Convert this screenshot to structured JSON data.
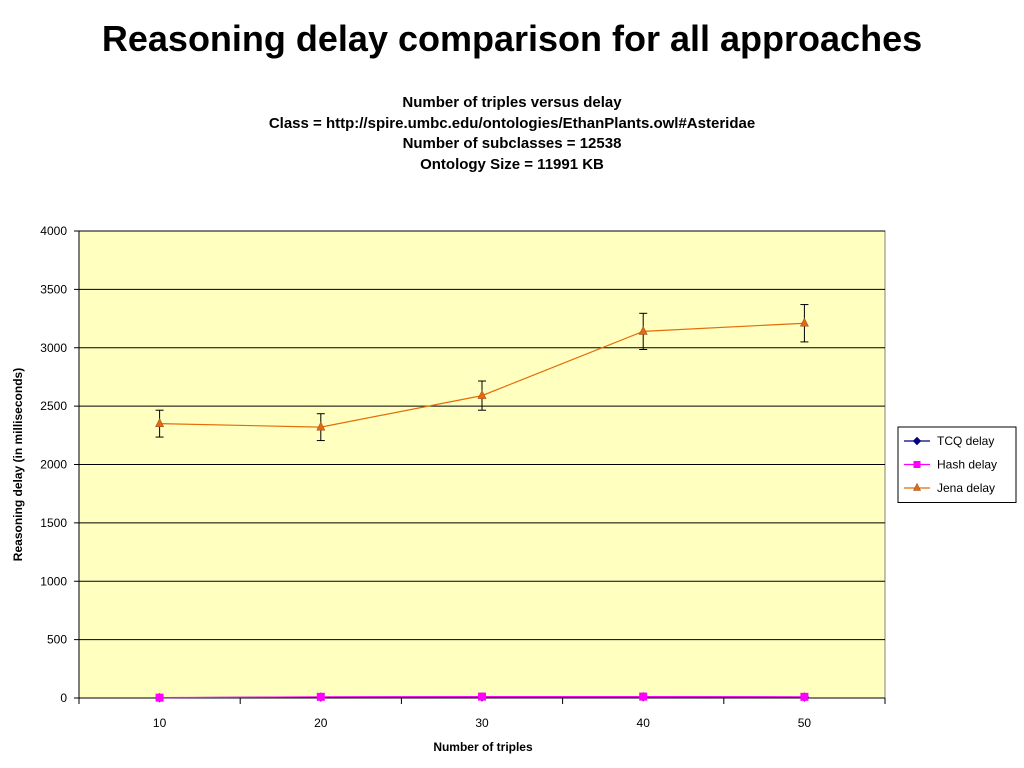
{
  "slide": {
    "title": "Reasoning delay comparison for all approaches"
  },
  "chart_data": {
    "type": "line",
    "title_lines": [
      "Number of triples versus delay",
      "Class = http://spire.umbc.edu/ontologies/EthanPlants.owl#Asteridae",
      "Number of subclasses = 12538",
      "Ontology Size = 11991 KB"
    ],
    "xlabel": "Number of triples",
    "ylabel": "Reasoning delay (in milliseconds)",
    "categories": [
      "10",
      "20",
      "30",
      "40",
      "50"
    ],
    "ylim": [
      0,
      4000
    ],
    "yticks": [
      "0",
      "500",
      "1000",
      "1500",
      "2000",
      "2500",
      "3000",
      "3500",
      "4000"
    ],
    "grid": true,
    "legend_position": "right",
    "plot_background": "#FFFFC0",
    "series": [
      {
        "name": "TCQ delay",
        "values": [
          2,
          8,
          9,
          10,
          8
        ],
        "color": "#000080",
        "marker": "diamond"
      },
      {
        "name": "Hash delay",
        "values": [
          3,
          10,
          12,
          12,
          10
        ],
        "color": "#FF00FF",
        "marker": "square"
      },
      {
        "name": "Jena delay",
        "values": [
          2350,
          2320,
          2590,
          3140,
          3210
        ],
        "error": [
          115,
          115,
          125,
          155,
          160
        ],
        "color": "#E46C0A",
        "marker": "triangle"
      }
    ]
  }
}
